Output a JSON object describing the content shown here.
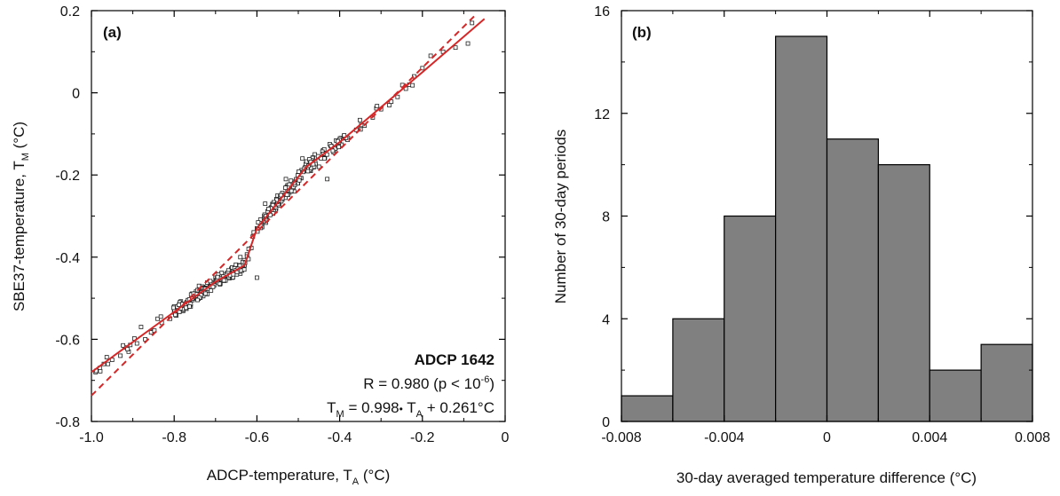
{
  "chart_data": [
    {
      "type": "scatter",
      "panel_label": "(a)",
      "xlabel": {
        "main": "ADCP-temperature, T",
        "sub": "A",
        "unit": " (°C)"
      },
      "ylabel": {
        "main": "SBE37-temperature, T",
        "sub": "M",
        "unit": " (°C)"
      },
      "xlim": [
        -1.0,
        0.0
      ],
      "ylim": [
        -0.8,
        0.2
      ],
      "x_tick_labels": [
        "-1.0",
        "-0.8",
        "-0.6",
        "-0.4",
        "-0.2",
        "0"
      ],
      "x_ticks": [
        -1.0,
        -0.8,
        -0.6,
        -0.4,
        -0.2,
        0.0
      ],
      "y_tick_labels": [
        "-0.8",
        "-0.6",
        "-0.4",
        "-0.2",
        "0",
        "0.2"
      ],
      "y_ticks": [
        -0.8,
        -0.6,
        -0.4,
        -0.2,
        0.0,
        0.2
      ],
      "annotation": {
        "title": "ADCP 1642",
        "r_text": "R = 0.980 (p < 10",
        "r_exp": "-6",
        "r_close": ")",
        "eq_t": "T",
        "eq_tm_sub": "M",
        "eq_mid": " = 0.998",
        "eq_dot": "•",
        "eq_ta": " T",
        "eq_ta_sub": "A",
        "eq_end": " + 0.261°C"
      },
      "scatter_points_approx": [
        [
          -0.99,
          -0.68
        ],
        [
          -0.98,
          -0.67
        ],
        [
          -0.97,
          -0.66
        ],
        [
          -0.95,
          -0.65
        ],
        [
          -0.93,
          -0.64
        ],
        [
          -0.91,
          -0.63
        ],
        [
          -0.89,
          -0.61
        ],
        [
          -0.87,
          -0.6
        ],
        [
          -0.85,
          -0.58
        ],
        [
          -0.83,
          -0.56
        ],
        [
          -0.81,
          -0.55
        ],
        [
          -0.79,
          -0.53
        ],
        [
          -0.77,
          -0.51
        ],
        [
          -0.75,
          -0.5
        ],
        [
          -0.73,
          -0.48
        ],
        [
          -0.71,
          -0.47
        ],
        [
          -0.69,
          -0.46
        ],
        [
          -0.67,
          -0.44
        ],
        [
          -0.65,
          -0.43
        ],
        [
          -0.63,
          -0.42
        ],
        [
          -0.62,
          -0.38
        ],
        [
          -0.61,
          -0.35
        ],
        [
          -0.6,
          -0.33
        ],
        [
          -0.58,
          -0.31
        ],
        [
          -0.56,
          -0.28
        ],
        [
          -0.54,
          -0.26
        ],
        [
          -0.52,
          -0.23
        ],
        [
          -0.5,
          -0.2
        ],
        [
          -0.48,
          -0.17
        ],
        [
          -0.46,
          -0.15
        ],
        [
          -0.44,
          -0.14
        ],
        [
          -0.42,
          -0.13
        ],
        [
          -0.4,
          -0.12
        ],
        [
          -0.38,
          -0.11
        ],
        [
          -0.36,
          -0.09
        ],
        [
          -0.34,
          -0.08
        ],
        [
          -0.32,
          -0.06
        ],
        [
          -0.3,
          -0.04
        ],
        [
          -0.28,
          -0.03
        ],
        [
          -0.26,
          -0.01
        ],
        [
          -0.24,
          0.01
        ],
        [
          -0.22,
          0.04
        ],
        [
          -0.2,
          0.06
        ],
        [
          -0.18,
          0.09
        ],
        [
          -0.15,
          0.1
        ],
        [
          -0.12,
          0.11
        ],
        [
          -0.09,
          0.12
        ],
        [
          -0.08,
          0.17
        ],
        [
          -0.55,
          -0.25
        ],
        [
          -0.57,
          -0.29
        ],
        [
          -0.64,
          -0.44
        ],
        [
          -0.66,
          -0.45
        ],
        [
          -0.7,
          -0.45
        ],
        [
          -0.72,
          -0.49
        ],
        [
          -0.74,
          -0.47
        ],
        [
          -0.76,
          -0.52
        ],
        [
          -0.6,
          -0.45
        ],
        [
          -0.64,
          -0.4
        ],
        [
          -0.49,
          -0.16
        ],
        [
          -0.47,
          -0.19
        ],
        [
          -0.45,
          -0.18
        ],
        [
          -0.43,
          -0.21
        ],
        [
          -0.58,
          -0.27
        ],
        [
          -0.53,
          -0.21
        ],
        [
          -0.51,
          -0.24
        ],
        [
          -0.8,
          -0.52
        ],
        [
          -0.84,
          -0.55
        ],
        [
          -0.88,
          -0.57
        ],
        [
          -0.92,
          -0.62
        ],
        [
          -0.96,
          -0.66
        ]
      ],
      "series": [
        {
          "kind": "fit",
          "segments": [
            [
              -1.0,
              -0.68
            ],
            [
              -0.85,
              -0.57
            ],
            [
              -0.7,
              -0.46
            ],
            [
              -0.63,
              -0.42
            ],
            [
              -0.6,
              -0.33
            ],
            [
              -0.48,
              -0.18
            ],
            [
              -0.4,
              -0.12
            ],
            [
              -0.2,
              0.05
            ],
            [
              -0.05,
              0.18
            ]
          ]
        },
        {
          "kind": "regression",
          "slope": 0.998,
          "intercept": 0.261
        }
      ]
    },
    {
      "type": "bar",
      "panel_label": "(b)",
      "xlabel": "30-day averaged temperature difference (°C)",
      "ylabel": "Number of 30-day periods",
      "xlim": [
        -0.008,
        0.008
      ],
      "ylim": [
        0,
        16
      ],
      "x_tick_labels": [
        "-0.008",
        "-0.004",
        "0",
        "0.004",
        "0.008"
      ],
      "x_ticks": [
        -0.008,
        -0.004,
        0.0,
        0.004,
        0.008
      ],
      "y_tick_labels": [
        "0",
        "4",
        "8",
        "12",
        "16"
      ],
      "y_ticks": [
        0,
        4,
        8,
        12,
        16
      ],
      "bin_edges": [
        -0.008,
        -0.006,
        -0.004,
        -0.002,
        0.0,
        0.002,
        0.004,
        0.006,
        0.008
      ],
      "values": [
        1,
        4,
        8,
        15,
        11,
        10,
        2,
        3
      ]
    }
  ],
  "colors": {
    "bar_fill": "#808080",
    "fit_line": "#d62728",
    "regression_line": "#d62728",
    "marker_edge": "#222222",
    "axis": "#000000"
  }
}
